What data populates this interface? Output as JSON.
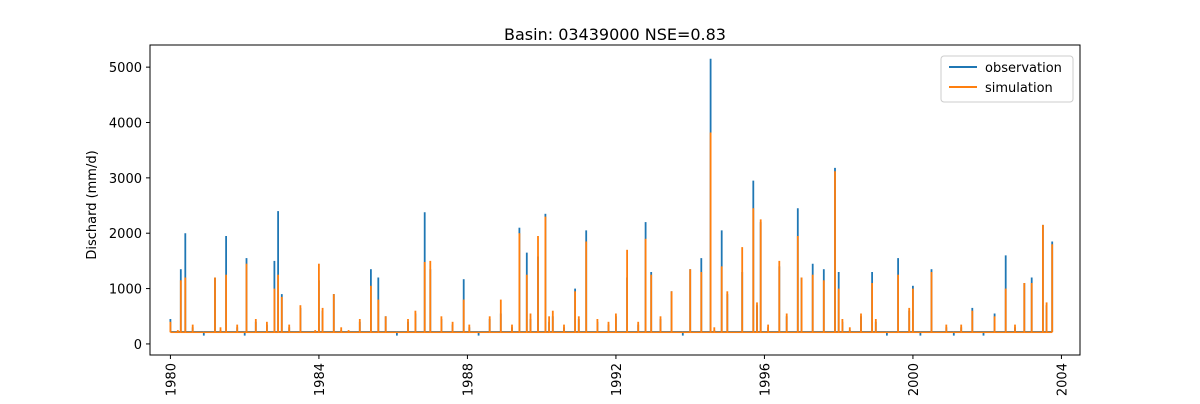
{
  "chart_data": {
    "type": "line",
    "title": "Basin: 03439000 NSE=0.83",
    "xlabel": "",
    "ylabel": "Dischard (mm/d)",
    "xlim": [
      1979.45,
      2004.5
    ],
    "ylim": [
      -200,
      5400
    ],
    "x_ticks": [
      1980,
      1984,
      1988,
      1992,
      1996,
      2000,
      2004
    ],
    "x_tick_labels": [
      "1980",
      "1984",
      "1988",
      "1992",
      "1996",
      "2000",
      "2004"
    ],
    "y_ticks": [
      0,
      1000,
      2000,
      3000,
      4000,
      5000
    ],
    "y_tick_labels": [
      "0",
      "1000",
      "2000",
      "3000",
      "4000",
      "5000"
    ],
    "legend_position": "top-right",
    "grid": false,
    "series": [
      {
        "name": "observation",
        "color": "#1f77b4",
        "x": [
          1980.0,
          1980.2,
          1980.28,
          1980.4,
          1980.6,
          1980.9,
          1981.2,
          1981.35,
          1981.5,
          1981.8,
          1982.0,
          1982.05,
          1982.3,
          1982.6,
          1982.8,
          1982.9,
          1983.0,
          1983.2,
          1983.5,
          1983.9,
          1984.0,
          1984.1,
          1984.4,
          1984.6,
          1984.8,
          1985.1,
          1985.4,
          1985.6,
          1985.8,
          1986.1,
          1986.4,
          1986.6,
          1986.85,
          1987.0,
          1987.3,
          1987.6,
          1987.9,
          1988.05,
          1988.3,
          1988.6,
          1988.9,
          1989.2,
          1989.4,
          1989.6,
          1989.7,
          1989.9,
          1990.1,
          1990.2,
          1990.3,
          1990.6,
          1990.9,
          1991.0,
          1991.2,
          1991.5,
          1991.8,
          1992.0,
          1992.3,
          1992.6,
          1992.8,
          1992.95,
          1993.2,
          1993.5,
          1993.8,
          1994.0,
          1994.3,
          1994.55,
          1994.65,
          1994.85,
          1995.0,
          1995.4,
          1995.7,
          1995.8,
          1995.9,
          1996.1,
          1996.4,
          1996.6,
          1996.9,
          1997.0,
          1997.3,
          1997.6,
          1997.9,
          1998.0,
          1998.1,
          1998.3,
          1998.6,
          1998.9,
          1999.0,
          1999.3,
          1999.6,
          1999.9,
          2000.0,
          2000.2,
          2000.5,
          2000.9,
          2001.1,
          2001.3,
          2001.6,
          2001.9,
          2002.2,
          2002.5,
          2002.75,
          2003.0,
          2003.2,
          2003.5,
          2003.6,
          2003.75
        ],
        "y": [
          450,
          200,
          1350,
          2000,
          300,
          150,
          1200,
          250,
          1950,
          300,
          150,
          1550,
          400,
          350,
          1500,
          2400,
          900,
          300,
          650,
          200,
          1150,
          600,
          900,
          250,
          200,
          400,
          1350,
          1200,
          500,
          150,
          400,
          550,
          2380,
          1350,
          450,
          350,
          1170,
          300,
          150,
          450,
          550,
          300,
          2100,
          1650,
          450,
          1580,
          2350,
          400,
          500,
          300,
          1000,
          450,
          2050,
          400,
          350,
          500,
          1200,
          350,
          2200,
          1300,
          450,
          950,
          150,
          1350,
          1550,
          5150,
          250,
          2050,
          900,
          1300,
          2950,
          700,
          2200,
          300,
          1400,
          500,
          2450,
          1200,
          1450,
          1350,
          3180,
          1300,
          400,
          250,
          500,
          1300,
          400,
          150,
          1550,
          600,
          1050,
          150,
          1350,
          300,
          150,
          300,
          650,
          150,
          550,
          1600,
          300,
          1100,
          1200,
          2150,
          700,
          1850
        ]
      },
      {
        "name": "simulation",
        "color": "#ff7f0e",
        "x": [
          1980.0,
          1980.2,
          1980.28,
          1980.4,
          1980.6,
          1980.9,
          1981.2,
          1981.35,
          1981.5,
          1981.8,
          1982.0,
          1982.05,
          1982.3,
          1982.6,
          1982.8,
          1982.9,
          1983.0,
          1983.2,
          1983.5,
          1983.9,
          1984.0,
          1984.1,
          1984.4,
          1984.6,
          1984.8,
          1985.1,
          1985.4,
          1985.6,
          1985.8,
          1986.1,
          1986.4,
          1986.6,
          1986.85,
          1987.0,
          1987.3,
          1987.6,
          1987.9,
          1988.05,
          1988.3,
          1988.6,
          1988.9,
          1989.2,
          1989.4,
          1989.6,
          1989.7,
          1989.9,
          1990.1,
          1990.2,
          1990.3,
          1990.6,
          1990.9,
          1991.0,
          1991.2,
          1991.5,
          1991.8,
          1992.0,
          1992.3,
          1992.6,
          1992.8,
          1992.95,
          1993.2,
          1993.5,
          1993.8,
          1994.0,
          1994.3,
          1994.55,
          1994.65,
          1994.85,
          1995.0,
          1995.4,
          1995.7,
          1995.8,
          1995.9,
          1996.1,
          1996.4,
          1996.6,
          1996.9,
          1997.0,
          1997.3,
          1997.6,
          1997.9,
          1998.0,
          1998.1,
          1998.3,
          1998.6,
          1998.9,
          1999.0,
          1999.3,
          1999.6,
          1999.9,
          2000.0,
          2000.2,
          2000.5,
          2000.9,
          2001.1,
          2001.3,
          2001.6,
          2001.9,
          2002.2,
          2002.5,
          2002.75,
          2003.0,
          2003.2,
          2003.5,
          2003.6,
          2003.75
        ],
        "y": [
          400,
          250,
          1150,
          1200,
          350,
          200,
          1200,
          300,
          1250,
          350,
          200,
          1450,
          450,
          400,
          1000,
          1250,
          850,
          350,
          700,
          250,
          1450,
          650,
          900,
          300,
          250,
          450,
          1050,
          800,
          500,
          200,
          450,
          600,
          1480,
          1500,
          500,
          400,
          800,
          350,
          200,
          500,
          800,
          350,
          2000,
          1250,
          550,
          1950,
          2300,
          500,
          600,
          350,
          950,
          500,
          1850,
          450,
          400,
          550,
          1700,
          400,
          1900,
          1250,
          500,
          950,
          200,
          1350,
          1300,
          3820,
          300,
          1400,
          950,
          1750,
          2450,
          750,
          2250,
          350,
          1500,
          550,
          1950,
          1200,
          1250,
          1150,
          3120,
          1000,
          450,
          300,
          550,
          1100,
          450,
          200,
          1250,
          650,
          1000,
          200,
          1300,
          350,
          200,
          350,
          600,
          200,
          500,
          1000,
          350,
          1100,
          1100,
          2150,
          750,
          1800
        ]
      }
    ]
  }
}
